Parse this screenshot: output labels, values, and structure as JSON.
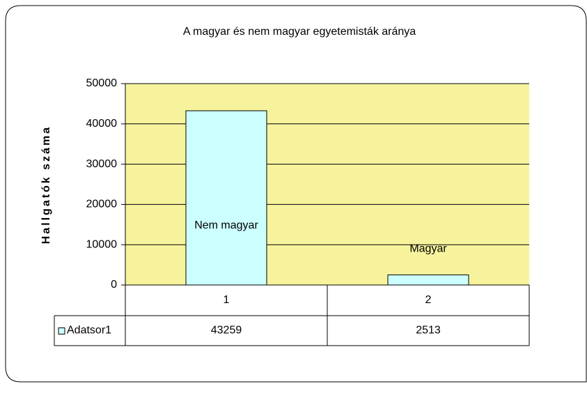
{
  "chart_data": {
    "type": "bar",
    "title": "A magyar és nem magyar egyetemisták aránya",
    "y_label": "Hallgatók száma",
    "categories": [
      "1",
      "2"
    ],
    "series": [
      {
        "name": "Adatsor1",
        "color": "#ccffff",
        "values": [
          43259,
          2513
        ]
      }
    ],
    "point_labels": [
      "Nem magyar",
      "Magyar"
    ],
    "ylim": [
      0,
      50000
    ],
    "yticks": [
      0,
      10000,
      20000,
      30000,
      40000,
      50000
    ],
    "grid": true,
    "plot_background": "#f7f39c",
    "data_table": true
  }
}
